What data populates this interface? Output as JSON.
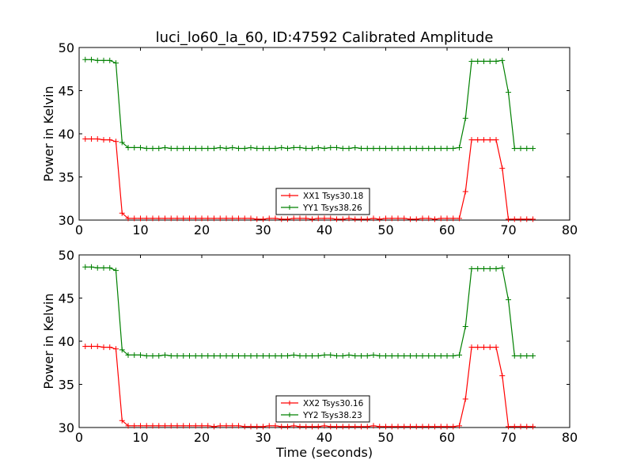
{
  "title": "luci_lo60_la_60, ID:47592 Calibrated Amplitude",
  "colors": {
    "xx": "#ff0000",
    "yy": "#008000"
  },
  "chart_data": [
    {
      "type": "line",
      "ylabel": "Power in Kelvin",
      "xlabel": "",
      "xlim": [
        0,
        80
      ],
      "ylim": [
        30,
        50
      ],
      "xticks": [
        "0",
        "10",
        "20",
        "30",
        "40",
        "50",
        "60",
        "70",
        "80"
      ],
      "yticks": [
        "30",
        "35",
        "40",
        "45",
        "50"
      ],
      "legend_position": "lower-center",
      "x": [
        1,
        2,
        3,
        4,
        5,
        6,
        7,
        8,
        9,
        10,
        11,
        12,
        13,
        14,
        15,
        16,
        17,
        18,
        19,
        20,
        21,
        22,
        23,
        24,
        25,
        26,
        27,
        28,
        29,
        30,
        31,
        32,
        33,
        34,
        35,
        36,
        37,
        38,
        39,
        40,
        41,
        42,
        43,
        44,
        45,
        46,
        47,
        48,
        49,
        50,
        51,
        52,
        53,
        54,
        55,
        56,
        57,
        58,
        59,
        60,
        61,
        62,
        63,
        64,
        65,
        66,
        67,
        68,
        69,
        70,
        71,
        72,
        73,
        74
      ],
      "series": [
        {
          "name": "XX1 Tsys30.18",
          "values": [
            39.4,
            39.4,
            39.4,
            39.3,
            39.3,
            39.1,
            30.8,
            30.2,
            30.2,
            30.2,
            30.2,
            30.2,
            30.2,
            30.2,
            30.2,
            30.2,
            30.2,
            30.2,
            30.2,
            30.2,
            30.2,
            30.2,
            30.2,
            30.2,
            30.2,
            30.2,
            30.2,
            30.2,
            30.1,
            30.1,
            30.2,
            30.2,
            30.1,
            30.1,
            30.2,
            30.2,
            30.2,
            30.1,
            30.2,
            30.2,
            30.2,
            30.1,
            30.1,
            30.2,
            30.1,
            30.1,
            30.1,
            30.2,
            30.1,
            30.2,
            30.2,
            30.2,
            30.2,
            30.1,
            30.1,
            30.2,
            30.2,
            30.1,
            30.2,
            30.2,
            30.2,
            30.2,
            33.3,
            39.3,
            39.3,
            39.3,
            39.3,
            39.3,
            36.0,
            30.1,
            30.1,
            30.1,
            30.1,
            30.1
          ]
        },
        {
          "name": "YY1 Tsys38.26",
          "values": [
            48.6,
            48.6,
            48.5,
            48.5,
            48.5,
            48.2,
            39.0,
            38.4,
            38.4,
            38.4,
            38.3,
            38.3,
            38.3,
            38.4,
            38.3,
            38.3,
            38.3,
            38.3,
            38.3,
            38.3,
            38.3,
            38.3,
            38.4,
            38.3,
            38.4,
            38.3,
            38.3,
            38.4,
            38.3,
            38.3,
            38.3,
            38.3,
            38.4,
            38.3,
            38.4,
            38.4,
            38.3,
            38.3,
            38.4,
            38.3,
            38.4,
            38.4,
            38.3,
            38.3,
            38.4,
            38.3,
            38.3,
            38.3,
            38.3,
            38.3,
            38.3,
            38.3,
            38.3,
            38.3,
            38.3,
            38.3,
            38.3,
            38.3,
            38.3,
            38.3,
            38.3,
            38.4,
            41.8,
            48.4,
            48.4,
            48.4,
            48.4,
            48.4,
            48.5,
            44.8,
            38.3,
            38.3,
            38.3,
            38.3
          ]
        }
      ]
    },
    {
      "type": "line",
      "ylabel": "Power in Kelvin",
      "xlabel": "Time (seconds)",
      "xlim": [
        0,
        80
      ],
      "ylim": [
        30,
        50
      ],
      "xticks": [
        "0",
        "10",
        "20",
        "30",
        "40",
        "50",
        "60",
        "70",
        "80"
      ],
      "yticks": [
        "30",
        "35",
        "40",
        "45",
        "50"
      ],
      "legend_position": "lower-center",
      "x": [
        1,
        2,
        3,
        4,
        5,
        6,
        7,
        8,
        9,
        10,
        11,
        12,
        13,
        14,
        15,
        16,
        17,
        18,
        19,
        20,
        21,
        22,
        23,
        24,
        25,
        26,
        27,
        28,
        29,
        30,
        31,
        32,
        33,
        34,
        35,
        36,
        37,
        38,
        39,
        40,
        41,
        42,
        43,
        44,
        45,
        46,
        47,
        48,
        49,
        50,
        51,
        52,
        53,
        54,
        55,
        56,
        57,
        58,
        59,
        60,
        61,
        62,
        63,
        64,
        65,
        66,
        67,
        68,
        69,
        70,
        71,
        72,
        73,
        74
      ],
      "series": [
        {
          "name": "XX2 Tsys30.16",
          "values": [
            39.4,
            39.4,
            39.4,
            39.3,
            39.3,
            39.1,
            30.8,
            30.2,
            30.2,
            30.2,
            30.2,
            30.2,
            30.2,
            30.2,
            30.2,
            30.2,
            30.2,
            30.2,
            30.2,
            30.2,
            30.2,
            30.1,
            30.2,
            30.2,
            30.2,
            30.2,
            30.1,
            30.1,
            30.1,
            30.1,
            30.2,
            30.2,
            30.1,
            30.1,
            30.2,
            30.1,
            30.1,
            30.1,
            30.1,
            30.2,
            30.1,
            30.1,
            30.1,
            30.1,
            30.1,
            30.1,
            30.1,
            30.2,
            30.1,
            30.1,
            30.1,
            30.1,
            30.1,
            30.1,
            30.1,
            30.1,
            30.1,
            30.1,
            30.1,
            30.1,
            30.1,
            30.2,
            33.3,
            39.3,
            39.3,
            39.3,
            39.3,
            39.3,
            36.0,
            30.1,
            30.1,
            30.1,
            30.1,
            30.1
          ]
        },
        {
          "name": "YY2 Tsys38.23",
          "values": [
            48.6,
            48.6,
            48.5,
            48.5,
            48.5,
            48.2,
            39.0,
            38.4,
            38.4,
            38.4,
            38.3,
            38.3,
            38.3,
            38.4,
            38.3,
            38.3,
            38.3,
            38.3,
            38.3,
            38.3,
            38.3,
            38.3,
            38.3,
            38.3,
            38.3,
            38.3,
            38.3,
            38.3,
            38.3,
            38.3,
            38.3,
            38.3,
            38.3,
            38.3,
            38.4,
            38.3,
            38.3,
            38.3,
            38.3,
            38.4,
            38.4,
            38.3,
            38.3,
            38.4,
            38.3,
            38.3,
            38.3,
            38.4,
            38.3,
            38.3,
            38.3,
            38.3,
            38.3,
            38.3,
            38.3,
            38.3,
            38.3,
            38.3,
            38.3,
            38.3,
            38.3,
            38.4,
            41.7,
            48.4,
            48.4,
            48.4,
            48.4,
            48.4,
            48.5,
            44.8,
            38.3,
            38.3,
            38.3,
            38.3
          ]
        }
      ]
    }
  ]
}
